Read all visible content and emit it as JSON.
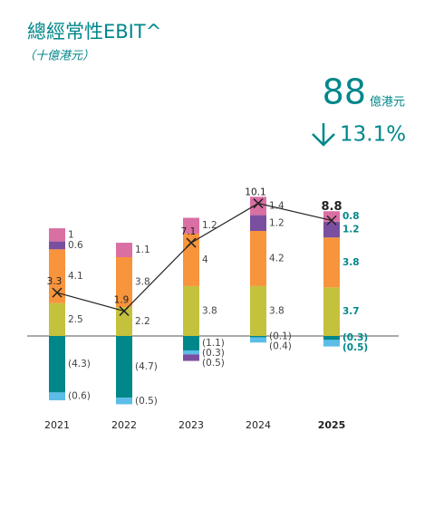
{
  "chart_data": {
    "type": "bar",
    "title": "總經常性EBIT^",
    "subtitle": "（十億港元）",
    "headline": {
      "value": 88,
      "unit": "億港元",
      "change": {
        "value": 13.1,
        "label": "13.1%"
      }
    },
    "categories": [
      "2021",
      "2022",
      "2023",
      "2024",
      "2025"
    ],
    "series": [
      {
        "color": "#c4c13c",
        "values": [
          2.5,
          2.2,
          3.8,
          3.8,
          3.7
        ]
      },
      {
        "color": "#f7943c",
        "values": [
          4.1,
          3.8,
          4.0,
          4.2,
          3.8
        ]
      },
      {
        "color": "#7a4fa0",
        "values": [
          0.6,
          null,
          -0.5,
          1.2,
          1.2
        ],
        "value_labels": [
          "0.6",
          null,
          "(0.5)",
          "1.2",
          "1.2"
        ]
      },
      {
        "color": "#d96fa3",
        "values": [
          1.0,
          1.1,
          1.2,
          1.4,
          0.8
        ]
      },
      {
        "color": "#00878a",
        "values": [
          -4.3,
          -4.7,
          -1.1,
          -0.1,
          -0.3
        ],
        "value_labels": [
          "(4.3)",
          "(4.7)",
          "(1.1)",
          "(0.1)",
          "(0.3)"
        ]
      },
      {
        "color": "#5bbde8",
        "values": [
          -0.6,
          -0.5,
          -0.3,
          -0.4,
          -0.5
        ],
        "value_labels": [
          "(0.6)",
          "(0.5)",
          "(0.3)",
          "(0.4)",
          "(0.5)"
        ]
      }
    ],
    "totals": {
      "color": "#222222",
      "values": [
        3.3,
        1.9,
        7.1,
        10.1,
        8.8
      ]
    },
    "ylim": [
      -5,
      12
    ]
  }
}
